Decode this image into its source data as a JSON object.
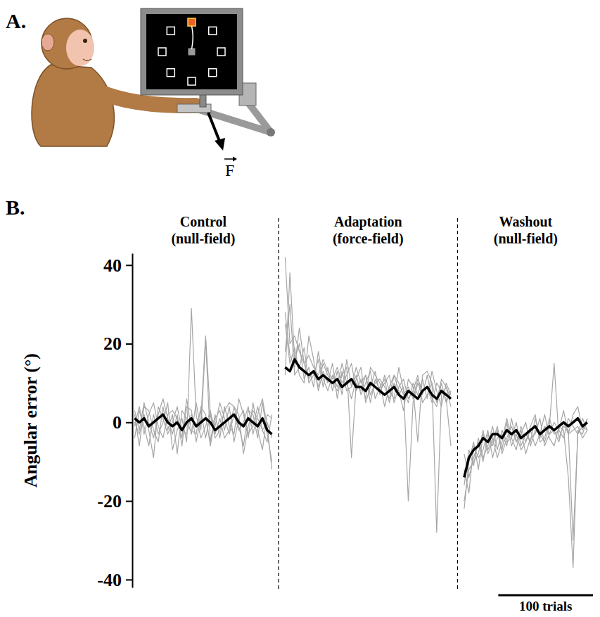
{
  "illustration": {
    "panel_label": "A.",
    "force_label": "F"
  },
  "chart_data": {
    "type": "line",
    "panel_label": "B.",
    "ylabel": "Angular error (°)",
    "tick_labels": "y",
    "xlim": [
      0,
      485
    ],
    "ylim": [
      -42,
      43
    ],
    "yticks": [
      -40,
      -20,
      0,
      20,
      40
    ],
    "phases": [
      {
        "title": "Control",
        "subtitle": "(null-field)",
        "start": 1,
        "end": 146
      },
      {
        "title": "Adaptation",
        "subtitle": "(force-field)",
        "start": 160,
        "end": 335
      },
      {
        "title": "Washout",
        "subtitle": "(null-field)",
        "start": 349,
        "end": 479
      }
    ],
    "dividers": [
      153,
      342
    ],
    "scale_bar": {
      "value": 100,
      "label": "100 trials"
    },
    "x": [
      1,
      6,
      11,
      16,
      21,
      26,
      31,
      36,
      41,
      46,
      51,
      56,
      61,
      66,
      71,
      76,
      81,
      86,
      91,
      96,
      101,
      106,
      111,
      116,
      121,
      126,
      131,
      136,
      141,
      146,
      153,
      160,
      165,
      170,
      175,
      180,
      185,
      190,
      195,
      200,
      205,
      210,
      215,
      220,
      225,
      230,
      235,
      240,
      245,
      250,
      255,
      260,
      265,
      270,
      275,
      280,
      285,
      290,
      295,
      300,
      305,
      310,
      315,
      320,
      325,
      330,
      335,
      342,
      349,
      354,
      359,
      364,
      369,
      374,
      379,
      384,
      389,
      394,
      399,
      404,
      409,
      414,
      419,
      424,
      429,
      434,
      439,
      444,
      449,
      454,
      459,
      464,
      469,
      474,
      479
    ],
    "series": [
      {
        "color": "#a6a6a6",
        "line_style": "thin",
        "values": [
          3,
          -2,
          5,
          0,
          -4,
          2,
          6,
          1,
          -3,
          2,
          -6,
          4,
          3,
          -5,
          1,
          22,
          2,
          -4,
          -2,
          3,
          5,
          4,
          -1,
          -6,
          3,
          2,
          -4,
          5,
          -3,
          -10,
          null,
          42,
          20,
          22,
          18,
          15,
          17,
          14,
          12,
          16,
          13,
          11,
          14,
          10,
          12,
          15,
          8,
          11,
          6,
          14,
          12,
          10,
          4,
          9,
          12,
          8,
          3,
          11,
          9,
          -5,
          12,
          13,
          10,
          5,
          11,
          9,
          4,
          null,
          -20,
          -12,
          -10,
          -8,
          -2,
          -8,
          -5,
          -1,
          -7,
          0,
          -6,
          -3,
          -7,
          -5,
          -1,
          2,
          -5,
          -4,
          1,
          -3,
          -2,
          3,
          -3,
          2,
          4,
          -2,
          1
        ]
      },
      {
        "color": "#a6a6a6",
        "line_style": "thin",
        "values": [
          -4,
          3,
          -1,
          -6,
          2,
          -3,
          0,
          5,
          -7,
          -2,
          1,
          -5,
          29,
          2,
          -4,
          -1,
          3,
          -3,
          1,
          -4,
          -2,
          4,
          2,
          -8,
          -1,
          3,
          1,
          -2,
          0,
          -4,
          null,
          18,
          30,
          12,
          14,
          19,
          10,
          12,
          16,
          9,
          14,
          8,
          13,
          7,
          16,
          9,
          12,
          7,
          10,
          13,
          6,
          9,
          11,
          5,
          10,
          7,
          9,
          -20,
          5,
          10,
          7,
          12,
          6,
          4,
          10,
          5,
          8,
          null,
          -12,
          -18,
          -6,
          -9,
          -7,
          -2,
          -9,
          -4,
          -3,
          -6,
          1,
          -5,
          -2,
          -8,
          -4,
          -3,
          1,
          -6,
          -3,
          -2,
          -5,
          0,
          -3,
          -2,
          -1,
          -4,
          -2
        ]
      },
      {
        "color": "#a6a6a6",
        "line_style": "thin",
        "values": [
          2,
          -6,
          4,
          3,
          -2,
          -5,
          4,
          -2,
          2,
          -8,
          3,
          1,
          -3,
          5,
          -2,
          21,
          -5,
          2,
          -4,
          4,
          -1,
          -3,
          6,
          2,
          -4,
          5,
          -2,
          -7,
          2,
          1,
          null,
          25,
          15,
          19,
          12,
          10,
          22,
          16,
          8,
          13,
          10,
          15,
          6,
          13,
          8,
          9,
          14,
          10,
          12,
          5,
          11,
          8,
          10,
          12,
          5,
          9,
          11,
          6,
          8,
          12,
          5,
          7,
          10,
          -28,
          7,
          9,
          6,
          null,
          -16,
          -7,
          -11,
          -4,
          -9,
          -6,
          -1,
          -7,
          -2,
          -5,
          -4,
          0,
          -6,
          -3,
          -5,
          1,
          -4,
          -1,
          -3,
          0,
          -2,
          -4,
          1,
          -1,
          -3,
          1,
          -2
        ]
      },
      {
        "color": "#a6a6a6",
        "line_style": "thin",
        "values": [
          -1,
          4,
          -3,
          2,
          5,
          -1,
          -4,
          2,
          3,
          1,
          -4,
          6,
          -2,
          -3,
          4,
          2,
          -6,
          1,
          3,
          -2,
          4,
          -5,
          1,
          3,
          -3,
          -1,
          4,
          -2,
          -5,
          2,
          null,
          12,
          38,
          16,
          20,
          11,
          14,
          9,
          18,
          11,
          8,
          12,
          9,
          15,
          10,
          6,
          11,
          14,
          5,
          9,
          13,
          7,
          12,
          8,
          6,
          14,
          8,
          5,
          10,
          7,
          11,
          6,
          13,
          8,
          4,
          10,
          7,
          null,
          -22,
          -10,
          -5,
          -12,
          -3,
          -7,
          -4,
          -9,
          -5,
          1,
          -4,
          -7,
          -1,
          -5,
          -2,
          -6,
          -3,
          2,
          -4,
          -6,
          -1,
          -2,
          -14,
          -37,
          -2,
          -3,
          1
        ]
      },
      {
        "color": "#a6a6a6",
        "line_style": "thin",
        "values": [
          0,
          -3,
          2,
          -2,
          -9,
          4,
          1,
          -3,
          0,
          4,
          -2,
          -3,
          2,
          -1,
          3,
          -4,
          2,
          -1,
          5,
          1,
          -3,
          2,
          -2,
          0,
          4,
          -3,
          2,
          6,
          -1,
          -12,
          null,
          28,
          17,
          14,
          24,
          15,
          11,
          13,
          9,
          15,
          12,
          10,
          8,
          12,
          14,
          -9,
          10,
          8,
          12,
          7,
          10,
          11,
          9,
          6,
          12,
          10,
          7,
          9,
          6,
          11,
          8,
          9,
          5,
          10,
          8,
          6,
          -6,
          null,
          -8,
          -14,
          -9,
          -5,
          -10,
          -3,
          -6,
          -2,
          -8,
          -4,
          -1,
          -5,
          -3,
          0,
          -6,
          -2,
          -3,
          -5,
          -1,
          15,
          -4,
          -1,
          -2,
          -30,
          -3,
          -1,
          -2
        ]
      },
      {
        "color": "#000000",
        "line_style": "bold",
        "values": [
          1,
          0,
          1,
          -1,
          0,
          1,
          2,
          0,
          -1,
          0,
          -2,
          0,
          1,
          -1,
          0,
          1,
          0,
          -2,
          -1,
          0,
          1,
          2,
          0,
          -1,
          1,
          0,
          -1,
          1,
          -2,
          -3,
          null,
          14,
          13,
          16,
          14,
          13,
          12,
          13,
          11,
          12,
          11,
          10,
          11,
          9,
          10,
          11,
          9,
          9,
          8,
          10,
          9,
          8,
          7,
          8,
          9,
          7,
          6,
          8,
          7,
          6,
          8,
          9,
          7,
          6,
          8,
          7,
          6,
          null,
          -14,
          -9,
          -7,
          -6,
          -4,
          -5,
          -3,
          -3,
          -4,
          -2,
          -3,
          -2,
          -4,
          -3,
          -2,
          -1,
          -3,
          -2,
          -1,
          -2,
          -1,
          0,
          -1,
          0,
          1,
          -1,
          0
        ]
      }
    ]
  }
}
